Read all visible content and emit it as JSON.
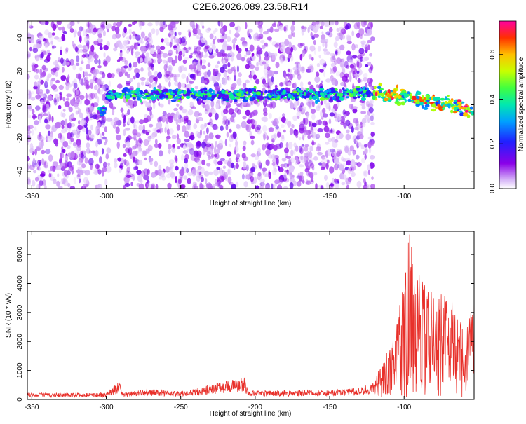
{
  "title": "C2E6.2026.089.23.58.R14",
  "chart_data": [
    {
      "type": "heatmap",
      "xlabel": "Height of straight line (km)",
      "ylabel": "Frequency (Hz)",
      "xlim": [
        -353,
        -53
      ],
      "ylim": [
        -50,
        50
      ],
      "xticks": [
        -350,
        -300,
        -250,
        -200,
        -150,
        -100
      ],
      "yticks": [
        -40,
        -20,
        0,
        20,
        40
      ],
      "colorbar": {
        "label": "Normalized spectral amplitude",
        "range": [
          0.0,
          0.75
        ],
        "ticks": [
          0.0,
          0.2,
          0.4,
          0.6
        ]
      },
      "signal_band": {
        "description_points": [
          {
            "x": -300,
            "y": 6
          },
          {
            "x": -250,
            "y": 6
          },
          {
            "x": -200,
            "y": 6
          },
          {
            "x": -150,
            "y": 6
          },
          {
            "x": -120,
            "y": 7
          },
          {
            "x": -100,
            "y": 5
          },
          {
            "x": -80,
            "y": 2
          },
          {
            "x": -53,
            "y": -3
          }
        ],
        "noise_cutoff_x": -125
      }
    },
    {
      "type": "line",
      "xlabel": "Height of straight line (km)",
      "ylabel": "SNR (10 * v/v)",
      "xlim": [
        -353,
        -53
      ],
      "ylim": [
        0,
        5800
      ],
      "xticks": [
        -350,
        -300,
        -250,
        -200,
        -150,
        -100
      ],
      "yticks": [
        0,
        1000,
        2000,
        3000,
        4000,
        5000
      ],
      "color": "#e8302a",
      "envelope": [
        {
          "x": -353,
          "y": 230
        },
        {
          "x": -300,
          "y": 230
        },
        {
          "x": -291,
          "y": 650
        },
        {
          "x": -289,
          "y": 250
        },
        {
          "x": -270,
          "y": 350
        },
        {
          "x": -250,
          "y": 280
        },
        {
          "x": -207,
          "y": 780
        },
        {
          "x": -205,
          "y": 300
        },
        {
          "x": -180,
          "y": 320
        },
        {
          "x": -150,
          "y": 320
        },
        {
          "x": -130,
          "y": 400
        },
        {
          "x": -120,
          "y": 600
        },
        {
          "x": -112,
          "y": 1500
        },
        {
          "x": -105,
          "y": 2500
        },
        {
          "x": -100,
          "y": 4400
        },
        {
          "x": -96,
          "y": 5800
        },
        {
          "x": -90,
          "y": 4300
        },
        {
          "x": -80,
          "y": 3500
        },
        {
          "x": -70,
          "y": 3600
        },
        {
          "x": -60,
          "y": 2400
        },
        {
          "x": -53,
          "y": 3300
        }
      ]
    }
  ]
}
